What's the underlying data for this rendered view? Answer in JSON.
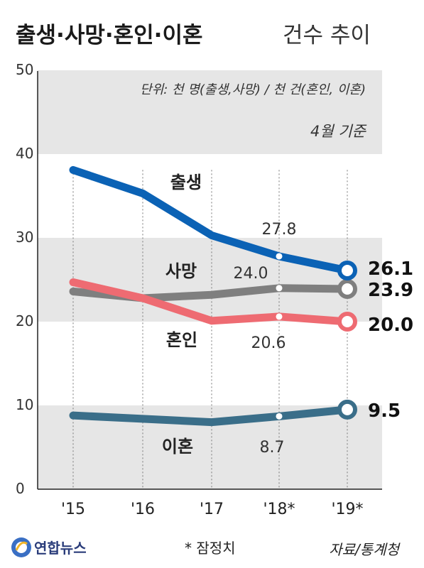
{
  "title": {
    "main": "출생·사망·혼인·이혼",
    "sub": "건수 추이"
  },
  "unit_note": "단위: 천 명(출생,사망) / 천 건(혼인, 이혼)",
  "month_note": "4월 기준",
  "footnote": "* 잠정치",
  "source": "자료/통계청",
  "logo": "연합뉴스",
  "chart_data": {
    "type": "line",
    "categories": [
      "'15",
      "'16",
      "'17",
      "'18*",
      "'19*"
    ],
    "ylim": [
      0,
      50
    ],
    "yticks": [
      "0",
      "10",
      "20",
      "30",
      "40",
      "50"
    ],
    "grid": false,
    "series": [
      {
        "name": "출생",
        "color": "#0b62b5",
        "values": [
          38.1,
          35.3,
          30.3,
          27.8,
          26.1
        ],
        "labels": [
          "",
          "",
          "",
          "27.8",
          "26.1"
        ]
      },
      {
        "name": "사망",
        "color": "#7f7f7f",
        "values": [
          23.6,
          22.8,
          23.2,
          24.0,
          23.9
        ],
        "labels": [
          "",
          "",
          "",
          "24.0",
          "23.9"
        ]
      },
      {
        "name": "혼인",
        "color": "#ee6b72",
        "values": [
          24.7,
          22.8,
          20.1,
          20.6,
          20.0
        ],
        "labels": [
          "",
          "",
          "",
          "20.6",
          "20.0"
        ]
      },
      {
        "name": "이혼",
        "color": "#3a6e89",
        "values": [
          8.8,
          8.4,
          8.0,
          8.7,
          9.5
        ],
        "labels": [
          "",
          "",
          "",
          "8.7",
          "9.5"
        ]
      }
    ]
  }
}
